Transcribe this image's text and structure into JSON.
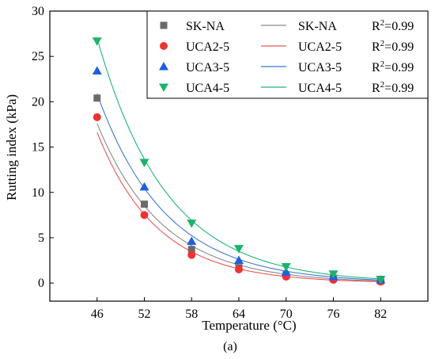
{
  "chart_data": {
    "type": "scatter",
    "xlabel": "Temperature (°C)",
    "ylabel": "Rutting index (kPa)",
    "caption": "(a)",
    "x": [
      46,
      52,
      58,
      64,
      70,
      76,
      82
    ],
    "xlim": [
      40,
      88
    ],
    "ylim": [
      -2,
      30
    ],
    "xticks": [
      46,
      52,
      58,
      64,
      70,
      76,
      82
    ],
    "yticks": [
      0,
      5,
      10,
      15,
      20,
      25,
      30
    ],
    "legend_position": "top-right",
    "series": [
      {
        "name": "SK-NA",
        "marker": "square",
        "color": "#6b6b6b",
        "fit_color": "#8a8a8a",
        "r2": "0.99",
        "values": [
          20.4,
          8.7,
          3.7,
          1.7,
          0.9,
          0.5,
          0.25
        ]
      },
      {
        "name": "UCA2-5",
        "marker": "circle",
        "color": "#ee3333",
        "fit_color": "#ee5555",
        "r2": "0.99",
        "values": [
          18.3,
          7.5,
          3.1,
          1.5,
          0.7,
          0.35,
          0.15
        ]
      },
      {
        "name": "UCA3-5",
        "marker": "triangle-up",
        "color": "#1e5fe0",
        "fit_color": "#3c78d8",
        "r2": "0.99",
        "values": [
          23.4,
          10.6,
          4.6,
          2.5,
          1.2,
          0.7,
          0.35
        ]
      },
      {
        "name": "UCA4-5",
        "marker": "triangle-down",
        "color": "#1bb36a",
        "fit_color": "#22b47a",
        "r2": "0.99",
        "values": [
          26.7,
          13.3,
          6.6,
          3.8,
          1.8,
          1.0,
          0.4
        ]
      }
    ],
    "r2_label": "R",
    "r2_sup": "2",
    "r2_prefix": "="
  }
}
